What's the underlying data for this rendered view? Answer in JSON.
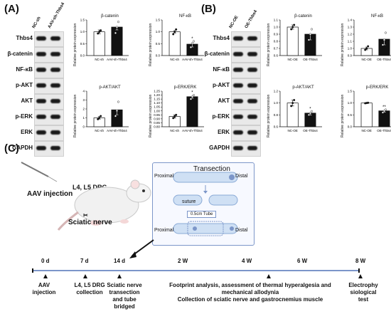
{
  "panels": {
    "a": "(A)",
    "b": "(B)",
    "c": "(C)"
  },
  "panelA": {
    "columns": [
      "NC-sh",
      "AAV-sh-Thbs4"
    ],
    "blots": [
      "Thbs4",
      "β-catenin",
      "NF-κB",
      "p-AKT",
      "AKT",
      "p-ERK",
      "ERK",
      "GAPDH"
    ]
  },
  "panelB": {
    "columns": [
      "NC-OE",
      "OE-Thbs4"
    ],
    "blots": [
      "Thbs4",
      "β-catenin",
      "NF-κB",
      "p-AKT",
      "AKT",
      "p-ERK",
      "ERK",
      "GAPDH"
    ]
  },
  "colors": {
    "white_bar": "#ffffff",
    "black_bar": "#111111",
    "frame": "#7c96c9",
    "tube": "#bcd3ef"
  },
  "chart_data": [
    {
      "type": "bar",
      "title": "β-catenin",
      "ylabel": "Relative protein expression",
      "categories": [
        "NC-sh",
        "AAV-sh-Thbs4"
      ],
      "values": [
        1.0,
        1.2
      ],
      "ylim": [
        0.0,
        1.5
      ],
      "ticks": [
        "0.0",
        "0.5",
        "1.0",
        "1.5"
      ],
      "errors": [
        0.08,
        0.12
      ],
      "points": [
        [
          0.93,
          1.0,
          1.06
        ],
        [
          0.95,
          1.2,
          1.42
        ]
      ],
      "sig": [
        "",
        ""
      ]
    },
    {
      "type": "bar",
      "title": "NF-κB",
      "ylabel": "Relative protein expression",
      "categories": [
        "NC-sh",
        "AAV-sh-Thbs4"
      ],
      "values": [
        1.0,
        0.48
      ],
      "ylim": [
        0.0,
        1.5
      ],
      "ticks": [
        "0.0",
        "0.5",
        "1.0",
        "1.5"
      ],
      "errors": [
        0.05,
        0.12
      ],
      "points": [
        [
          0.9,
          1.0,
          1.1
        ],
        [
          0.35,
          0.52,
          0.6
        ]
      ],
      "sig": [
        "",
        "*"
      ]
    },
    {
      "type": "bar",
      "title": "p-AKT/AKT",
      "ylabel": "Relative protein expression",
      "categories": [
        "NC-sh",
        "AAV-sh-Thbs4"
      ],
      "values": [
        1.0,
        1.9
      ],
      "ylim": [
        0,
        4
      ],
      "ticks": [
        "0",
        "1",
        "2",
        "3",
        "4"
      ],
      "errors": [
        0.15,
        0.55
      ],
      "points": [
        [
          0.85,
          1.0,
          1.2
        ],
        [
          1.2,
          1.8,
          2.8
        ]
      ],
      "sig": [
        "",
        ""
      ]
    },
    {
      "type": "bar",
      "title": "p-ERK/ERK",
      "ylabel": "Relative protein expression",
      "categories": [
        "NC-sh",
        "AAV-sh-Thbs4"
      ],
      "values": [
        0.93,
        1.18
      ],
      "ylim": [
        0.8,
        1.25
      ],
      "ticks": [
        "0.80",
        "0.85",
        "0.90",
        "0.95",
        "1.00",
        "1.05",
        "1.10",
        "1.15",
        "1.20",
        "1.25"
      ],
      "errors": [
        0.02,
        0.02
      ],
      "points": [
        [
          0.91,
          0.93,
          0.95
        ],
        [
          1.15,
          1.18,
          1.2
        ]
      ],
      "sig": [
        "",
        "*"
      ]
    },
    {
      "type": "bar",
      "title": "β-catenin",
      "ylabel": "Relative protein expression",
      "categories": [
        "NC-OE",
        "OE-Thbs4"
      ],
      "values": [
        1.0,
        0.9
      ],
      "ylim": [
        0.6,
        1.1
      ],
      "ticks": [
        "0.6",
        "0.7",
        "0.8",
        "0.9",
        "1.0",
        "1.1"
      ],
      "errors": [
        0.03,
        0.08
      ],
      "points": [
        [
          0.97,
          1.0,
          1.03
        ],
        [
          0.82,
          0.9,
          0.97
        ]
      ],
      "sig": [
        "",
        ""
      ]
    },
    {
      "type": "bar",
      "title": "NF-κB",
      "ylabel": "Relative protein expression",
      "categories": [
        "NC-OE",
        "OE-Thbs4"
      ],
      "values": [
        1.0,
        1.13
      ],
      "ylim": [
        0.9,
        1.4
      ],
      "ticks": [
        "0.9",
        "1.0",
        "1.1",
        "1.2",
        "1.3",
        "1.4"
      ],
      "errors": [
        0.02,
        0.08
      ],
      "points": [
        [
          0.98,
          1.0,
          1.03
        ],
        [
          1.05,
          1.12,
          1.22
        ]
      ],
      "sig": [
        "",
        ""
      ]
    },
    {
      "type": "bar",
      "title": "p-AKT/AKT",
      "ylabel": "Relative protein expression",
      "categories": [
        "NC-OE",
        "OE-Thbs4"
      ],
      "values": [
        1.0,
        0.83
      ],
      "ylim": [
        0.6,
        1.2
      ],
      "ticks": [
        "0.6",
        "0.8",
        "1.0",
        "1.2"
      ],
      "errors": [
        0.05,
        0.03
      ],
      "points": [
        [
          0.95,
          1.0,
          1.05
        ],
        [
          0.8,
          0.83,
          0.86
        ]
      ],
      "sig": [
        "",
        "*"
      ]
    },
    {
      "type": "bar",
      "title": "p-ERK/ERK",
      "ylabel": "Relative protein expression",
      "categories": [
        "NC-OE",
        "OE-Thbs4"
      ],
      "values": [
        1.0,
        0.67
      ],
      "ylim": [
        0.0,
        1.5
      ],
      "ticks": [
        "0.0",
        "0.5",
        "1.0",
        "1.5"
      ],
      "errors": [
        0.01,
        0.05
      ],
      "points": [
        [
          0.99,
          1.0,
          1.01
        ],
        [
          0.6,
          0.67,
          0.72
        ]
      ],
      "sig": [
        "",
        "**"
      ]
    }
  ],
  "panelC": {
    "aav_injection": "AAV injection",
    "dorsal_root": "L4, L5 DRG",
    "sciatic_nerve": "Sciatic nerve",
    "transection": {
      "title": "Transection",
      "proximal": "Proximal",
      "distal": "Distal",
      "suture": "suture",
      "tube": "0.5cm Tube",
      "proximal2": "Proximal",
      "distal2": "Distal"
    },
    "timeline": {
      "labels": [
        "0 d",
        "7 d",
        "14 d",
        "2 W",
        "4 W",
        "6 W",
        "8 W"
      ],
      "events": [
        "AAV\ninjection",
        "L4, L5 DRG\ncollection",
        "Sciatic nerve\ntransection\nand tube\nbridged",
        "Footprint analysis, assessment of thermal hyperalgesia and\nmechanical allodynia\nCollection of sciatic nerve and gastrocnemius muscle",
        "Electrophy\nsiological\ntest"
      ]
    }
  }
}
